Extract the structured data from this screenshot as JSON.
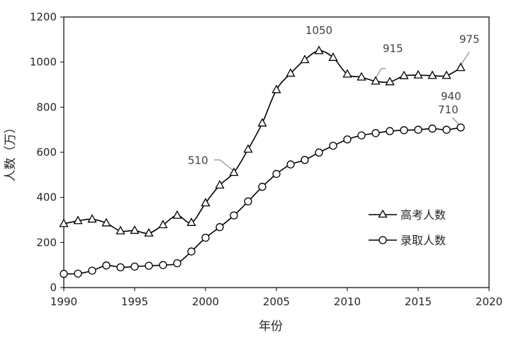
{
  "chart_data": {
    "type": "line",
    "xlabel": "年份",
    "ylabel": "人数（万）",
    "xlim": [
      1990,
      2020
    ],
    "ylim": [
      0,
      1200
    ],
    "xticks": [
      1990,
      1995,
      2000,
      2005,
      2010,
      2015,
      2020
    ],
    "yticks": [
      0,
      200,
      400,
      600,
      800,
      1000,
      1200
    ],
    "grid": false,
    "legend_position": "right-middle",
    "series": [
      {
        "name": "高考人数",
        "marker": "triangle",
        "x": [
          1990,
          1991,
          1992,
          1993,
          1994,
          1995,
          1996,
          1997,
          1998,
          1999,
          2000,
          2001,
          2002,
          2003,
          2004,
          2005,
          2006,
          2007,
          2008,
          2009,
          2010,
          2011,
          2012,
          2013,
          2014,
          2015,
          2016,
          2017,
          2018
        ],
        "values": [
          283,
          296,
          303,
          286,
          251,
          253,
          241,
          278,
          320,
          288,
          375,
          454,
          510,
          613,
          729,
          877,
          950,
          1010,
          1050,
          1020,
          946,
          933,
          915,
          912,
          939,
          942,
          940,
          940,
          975
        ]
      },
      {
        "name": "录取人数",
        "marker": "circle",
        "x": [
          1990,
          1991,
          1992,
          1993,
          1994,
          1995,
          1996,
          1997,
          1998,
          1999,
          2000,
          2001,
          2002,
          2003,
          2004,
          2005,
          2006,
          2007,
          2008,
          2009,
          2010,
          2011,
          2012,
          2013,
          2014,
          2015,
          2016,
          2017,
          2018
        ],
        "values": [
          61,
          62,
          75,
          98,
          90,
          93,
          97,
          100,
          108,
          160,
          221,
          268,
          320,
          382,
          447,
          504,
          546,
          566,
          599,
          629,
          657,
          675,
          685,
          694,
          698,
          700,
          705,
          700,
          710
        ]
      }
    ],
    "annotations": [
      {
        "text": "1050",
        "series": 0,
        "x": 2008
      },
      {
        "text": "975",
        "series": 0,
        "x": 2018
      },
      {
        "text": "915",
        "series": 0,
        "x": 2012
      },
      {
        "text": "940",
        "series": 0,
        "x": 2017
      },
      {
        "text": "510",
        "series": 0,
        "x": 2002
      },
      {
        "text": "710",
        "series": 1,
        "x": 2018
      }
    ]
  }
}
